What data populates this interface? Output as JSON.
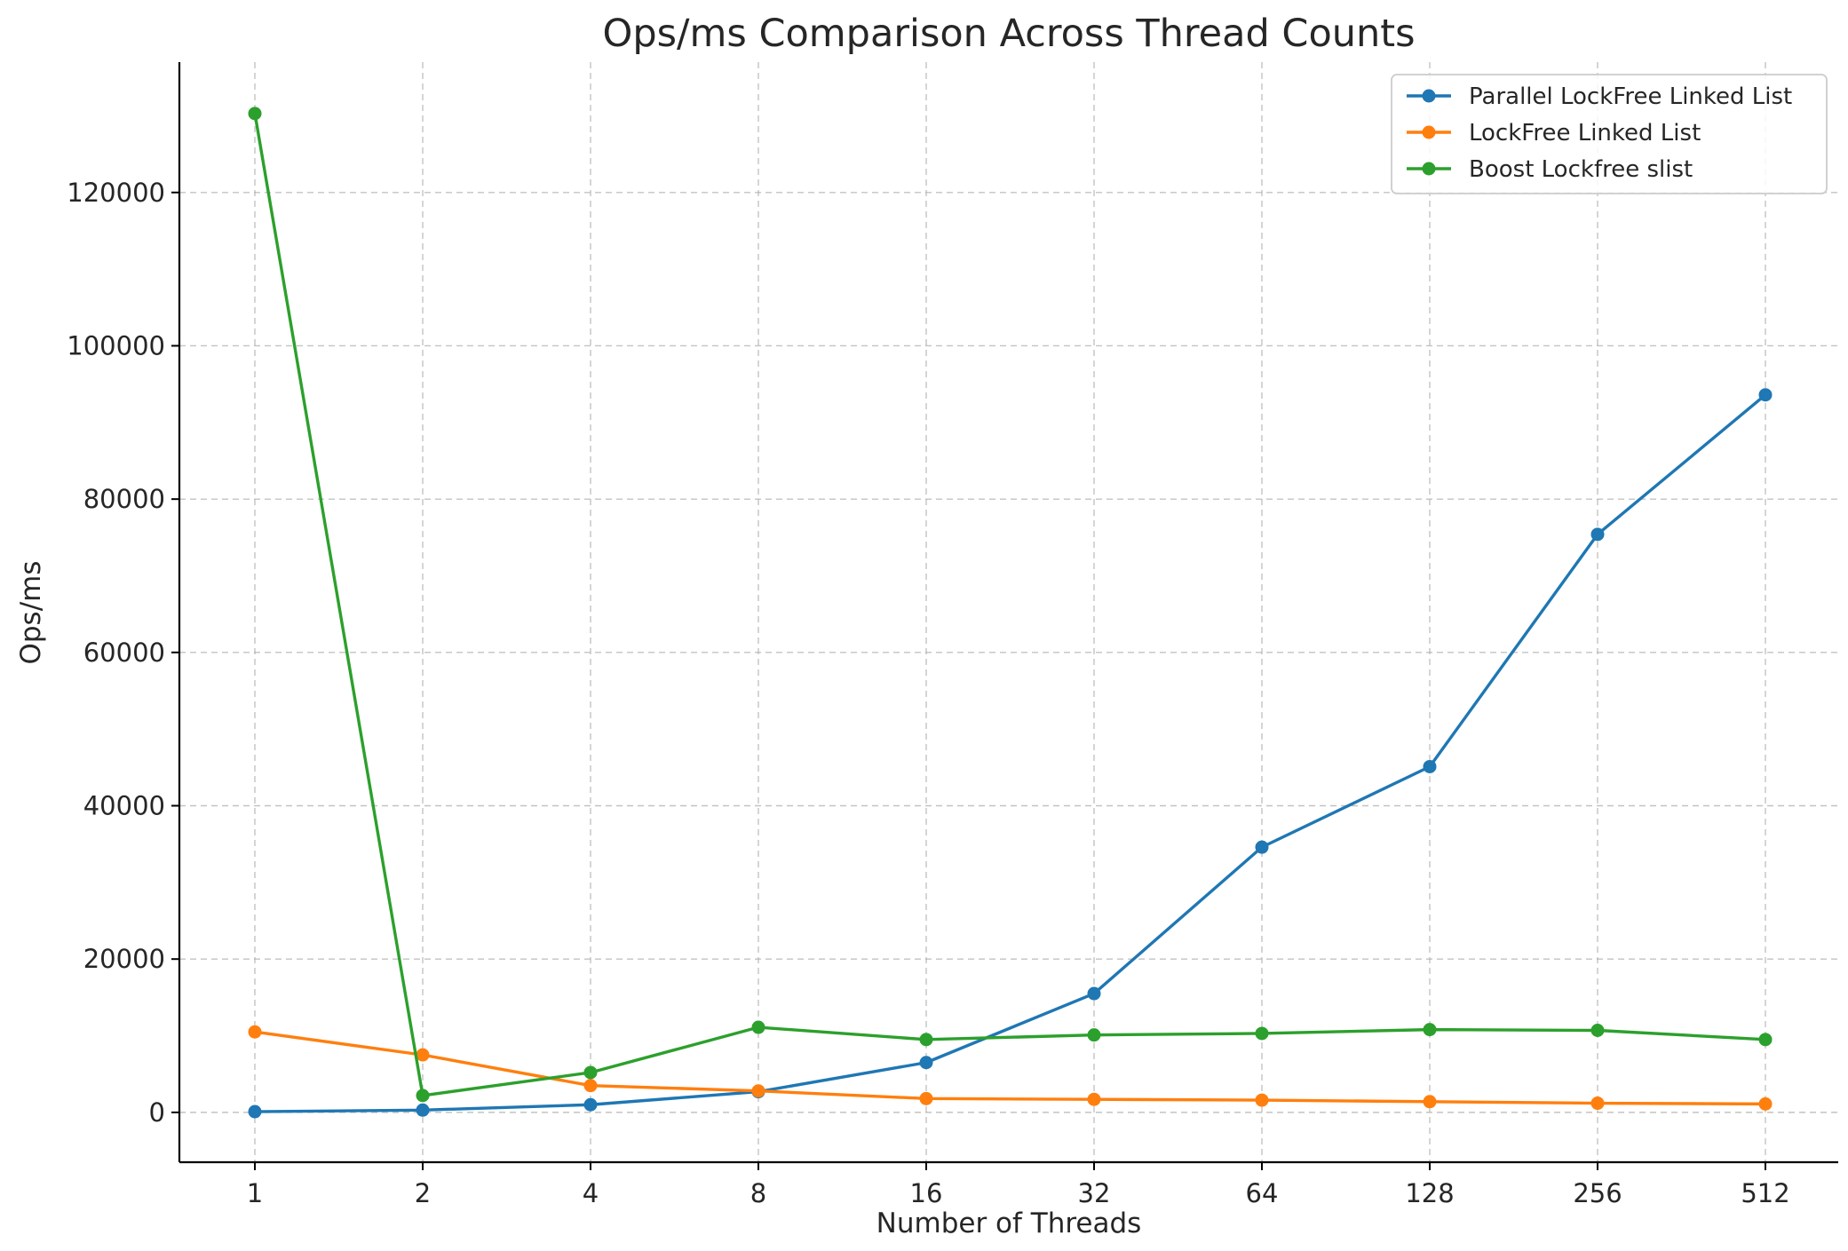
{
  "chart_data": {
    "type": "line",
    "title": "Ops/ms Comparison Across Thread Counts",
    "xlabel": "Number of Threads",
    "ylabel": "Ops/ms",
    "categories": [
      "1",
      "2",
      "4",
      "8",
      "16",
      "32",
      "64",
      "128",
      "256",
      "512"
    ],
    "yticks": [
      0,
      20000,
      40000,
      60000,
      80000,
      100000,
      120000
    ],
    "ylim": [
      -6500,
      137000
    ],
    "grid": true,
    "legend_position": "top-right",
    "series": [
      {
        "name": "Parallel LockFree Linked List",
        "color": "#1f77b4",
        "values": [
          100,
          300,
          1000,
          2700,
          6500,
          15500,
          34600,
          45100,
          75400,
          93600
        ]
      },
      {
        "name": "LockFree Linked List",
        "color": "#ff7f0e",
        "values": [
          10500,
          7500,
          3500,
          2800,
          1800,
          1700,
          1600,
          1400,
          1200,
          1100
        ]
      },
      {
        "name": "Boost Lockfree slist",
        "color": "#2ca02c",
        "values": [
          130300,
          2200,
          5200,
          11100,
          9500,
          10100,
          10300,
          10800,
          10700,
          9500
        ]
      }
    ]
  }
}
